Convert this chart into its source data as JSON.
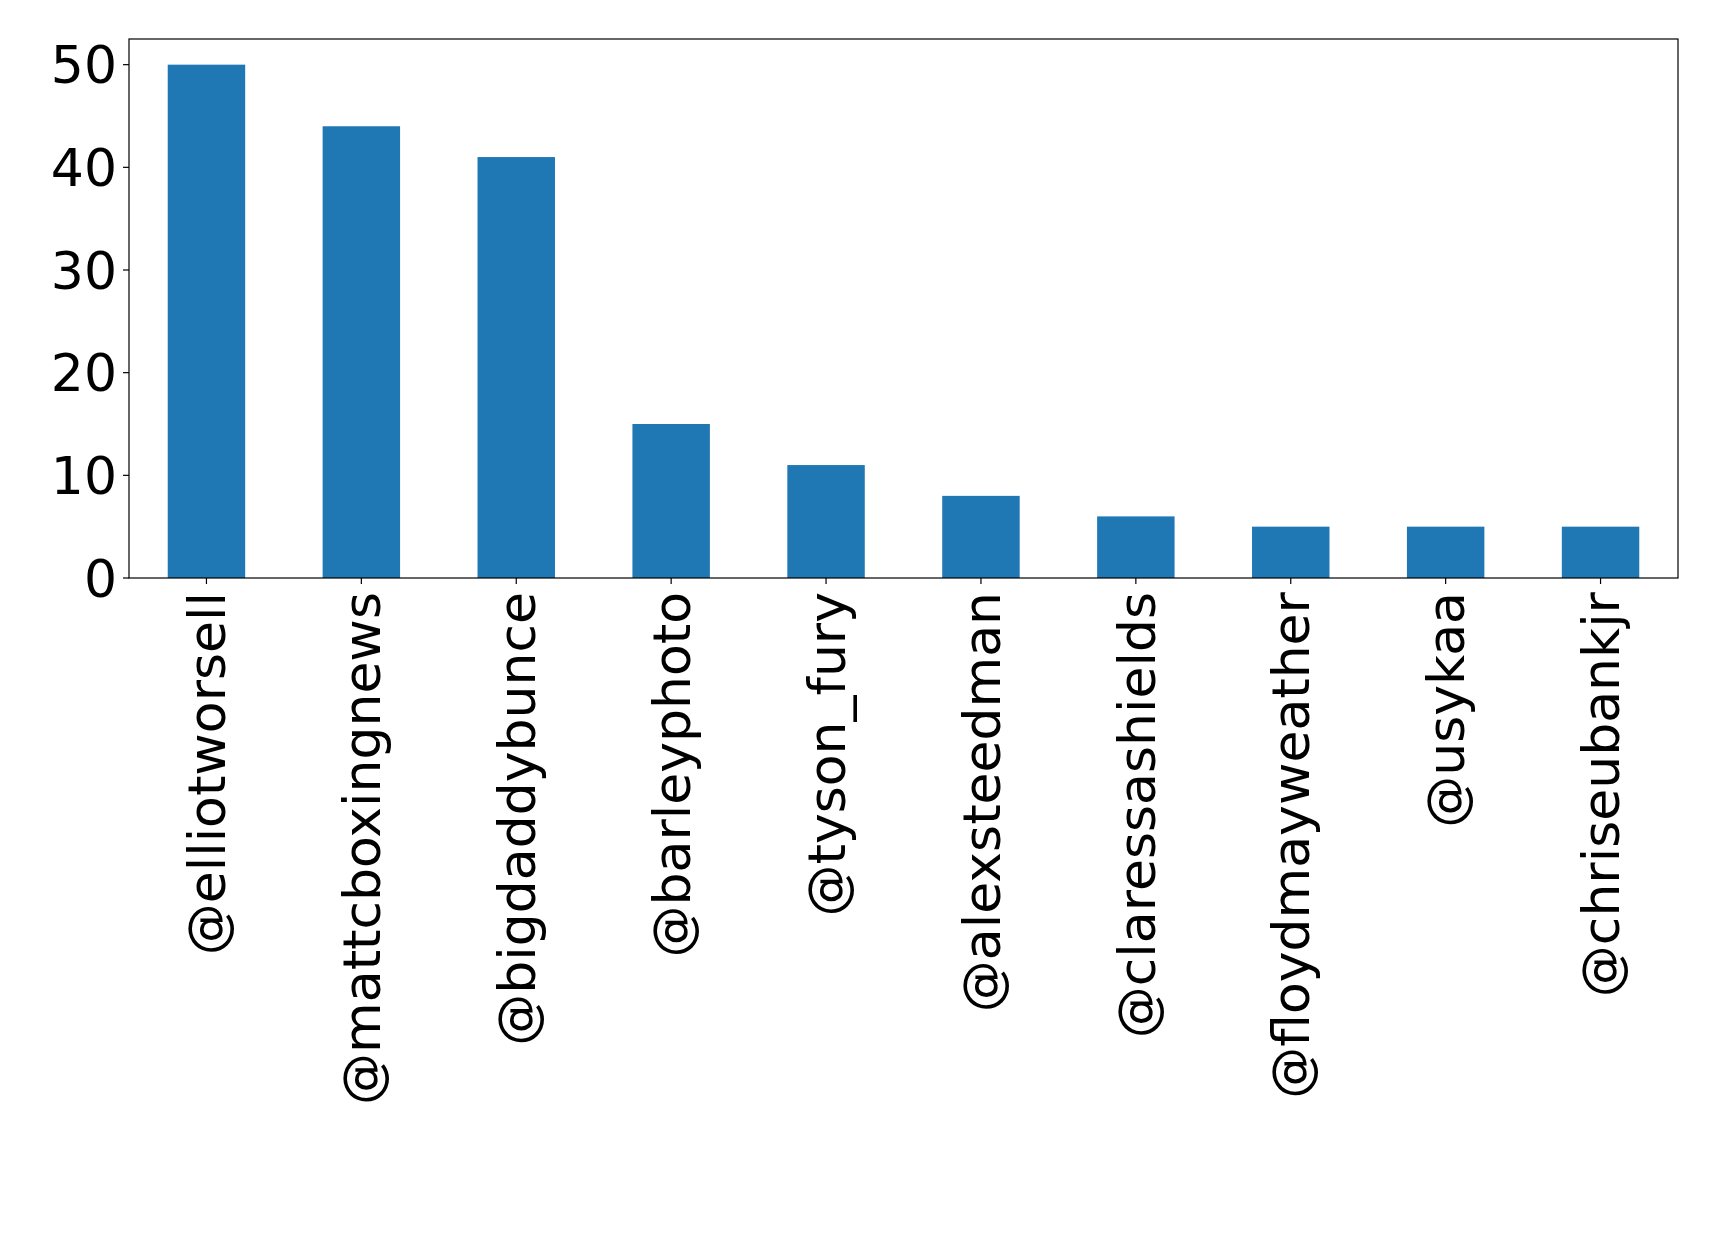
{
  "chart_data": {
    "type": "bar",
    "categories": [
      "@elliotworsell",
      "@mattcboxingnews",
      "@bigdaddybunce",
      "@barleyphoto",
      "@tyson_fury",
      "@alexsteedman",
      "@claressashields",
      "@floydmayweather",
      "@usykaa",
      "@chriseubankjr"
    ],
    "values": [
      50,
      44,
      41,
      15,
      11,
      8,
      6,
      5,
      5,
      5
    ],
    "color": "#1f77b4",
    "ylim": [
      0,
      52.5
    ],
    "yticks": [
      0,
      10,
      20,
      30,
      40,
      50
    ]
  }
}
